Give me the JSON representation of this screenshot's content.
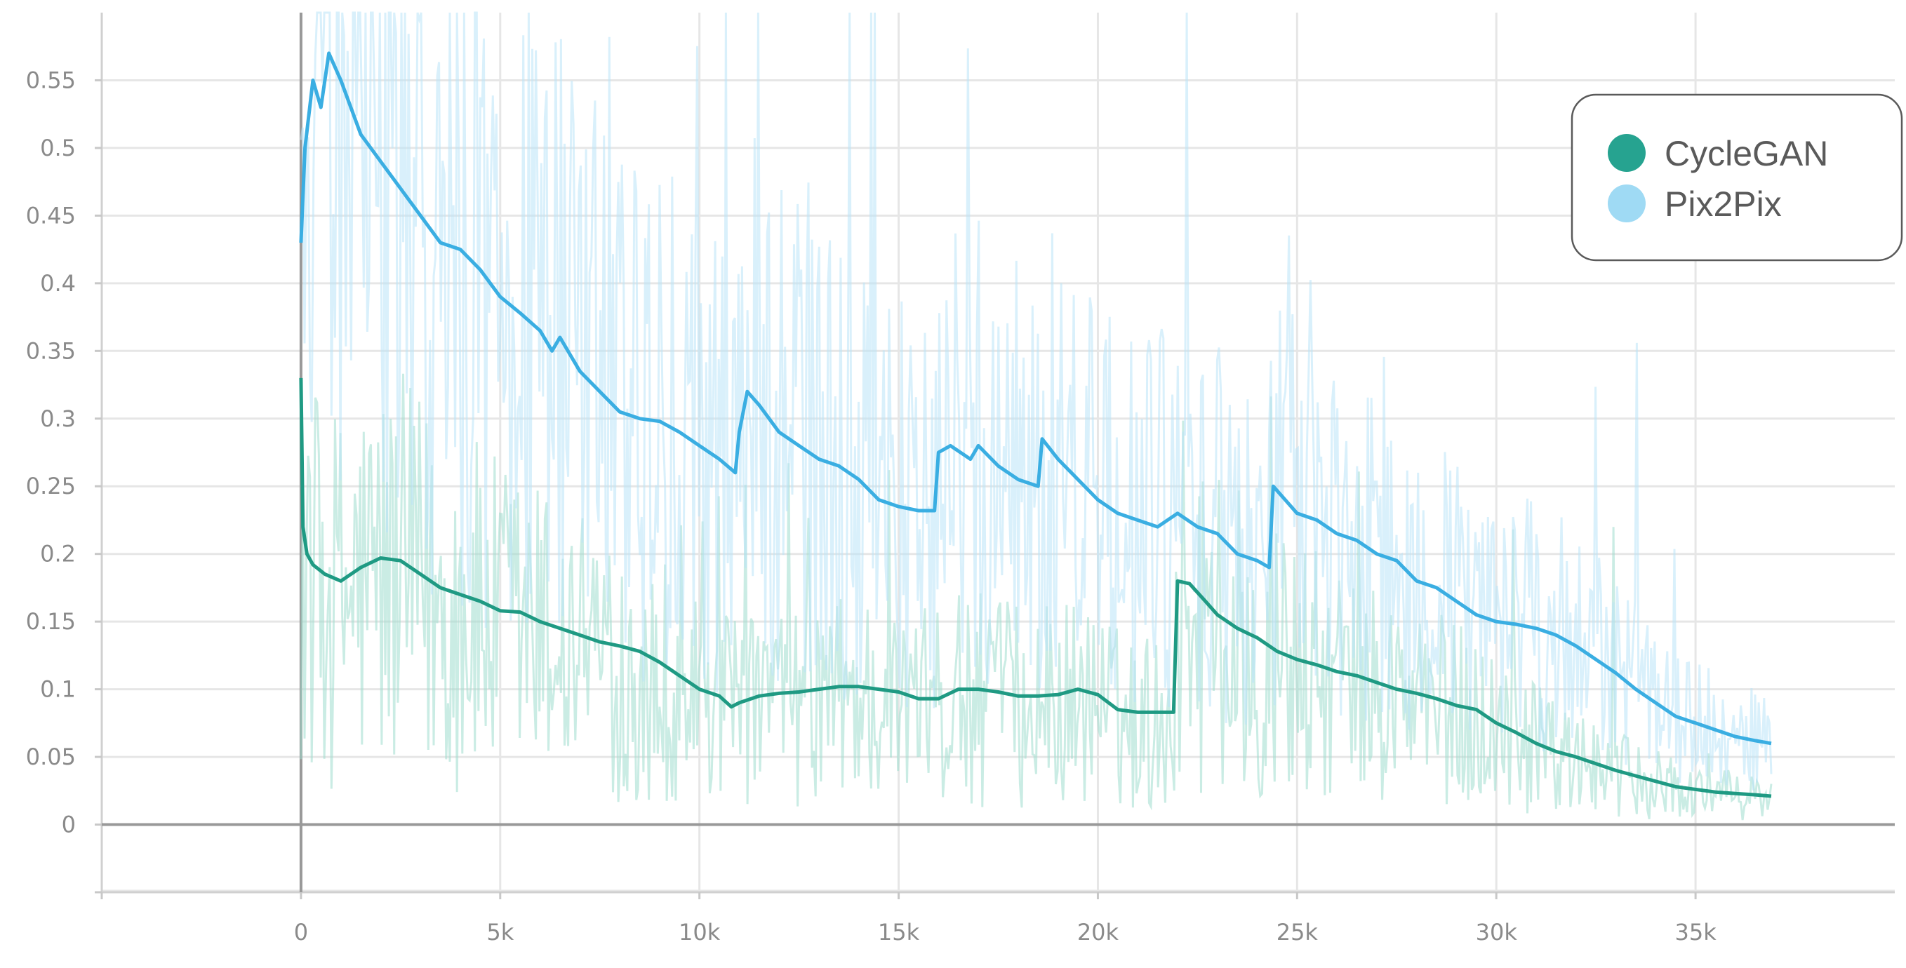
{
  "chart_data": {
    "type": "line",
    "title": "",
    "xlabel": "",
    "ylabel": "",
    "xlim": [
      -5000,
      40000
    ],
    "ylim": [
      -0.05,
      0.6
    ],
    "x_ticks": [
      0,
      5000,
      10000,
      15000,
      20000,
      25000,
      30000,
      35000
    ],
    "x_tick_labels": [
      "0",
      "5k",
      "10k",
      "15k",
      "20k",
      "25k",
      "30k",
      "35k"
    ],
    "y_ticks": [
      0,
      0.05,
      0.1,
      0.15,
      0.2,
      0.25,
      0.3,
      0.35,
      0.4,
      0.45,
      0.5,
      0.55
    ],
    "y_tick_labels": [
      "0",
      "0.05",
      "0.1",
      "0.15",
      "0.2",
      "0.25",
      "0.3",
      "0.35",
      "0.4",
      "0.45",
      "0.5",
      "0.55"
    ],
    "grid": true,
    "legend_position": "top-right",
    "series": [
      {
        "name": "CycleGAN",
        "color": "#1f9a83",
        "raw_color": "#9fdccd",
        "x": [
          0,
          50,
          150,
          300,
          600,
          1000,
          1500,
          2000,
          2500,
          3000,
          3500,
          4000,
          4500,
          5000,
          5500,
          6000,
          6500,
          7000,
          7500,
          8000,
          8500,
          9000,
          9500,
          10000,
          10500,
          10800,
          11000,
          11500,
          12000,
          12500,
          13000,
          13500,
          14000,
          14500,
          15000,
          15500,
          16000,
          16500,
          17000,
          17500,
          18000,
          18500,
          19000,
          19500,
          20000,
          20500,
          21000,
          21500,
          21900,
          22000,
          22300,
          22700,
          23000,
          23500,
          24000,
          24500,
          25000,
          25500,
          26000,
          26500,
          27000,
          27500,
          28000,
          28500,
          29000,
          29500,
          30000,
          30500,
          31000,
          31500,
          32000,
          32500,
          33000,
          33500,
          34000,
          34500,
          35000,
          35500,
          36000,
          36500,
          36900
        ],
        "y": [
          0.33,
          0.22,
          0.2,
          0.192,
          0.185,
          0.18,
          0.19,
          0.197,
          0.195,
          0.185,
          0.175,
          0.17,
          0.165,
          0.158,
          0.157,
          0.15,
          0.145,
          0.14,
          0.135,
          0.132,
          0.128,
          0.12,
          0.11,
          0.1,
          0.095,
          0.087,
          0.09,
          0.095,
          0.097,
          0.098,
          0.1,
          0.102,
          0.102,
          0.1,
          0.098,
          0.093,
          0.093,
          0.1,
          0.1,
          0.098,
          0.095,
          0.095,
          0.096,
          0.1,
          0.096,
          0.085,
          0.083,
          0.083,
          0.083,
          0.18,
          0.178,
          0.165,
          0.155,
          0.145,
          0.138,
          0.128,
          0.122,
          0.118,
          0.113,
          0.11,
          0.105,
          0.1,
          0.097,
          0.093,
          0.088,
          0.085,
          0.075,
          0.068,
          0.06,
          0.054,
          0.05,
          0.045,
          0.04,
          0.036,
          0.032,
          0.028,
          0.026,
          0.024,
          0.023,
          0.022,
          0.021
        ]
      },
      {
        "name": "Pix2Pix",
        "color": "#3aaee2",
        "raw_color": "#b9e3f8",
        "x": [
          0,
          100,
          300,
          500,
          700,
          1000,
          1500,
          2000,
          2500,
          3000,
          3500,
          4000,
          4500,
          5000,
          5500,
          6000,
          6300,
          6500,
          7000,
          7500,
          8000,
          8500,
          9000,
          9500,
          10000,
          10500,
          10900,
          11000,
          11200,
          11500,
          12000,
          12500,
          13000,
          13500,
          14000,
          14500,
          15000,
          15500,
          15900,
          16000,
          16300,
          16800,
          17000,
          17500,
          18000,
          18500,
          18600,
          19000,
          19500,
          20000,
          20500,
          21000,
          21500,
          22000,
          22500,
          23000,
          23500,
          24000,
          24300,
          24400,
          24700,
          25000,
          25500,
          26000,
          26500,
          27000,
          27500,
          28000,
          28500,
          29000,
          29500,
          30000,
          30500,
          31000,
          31500,
          32000,
          32500,
          33000,
          33500,
          34000,
          34500,
          35000,
          35500,
          36000,
          36500,
          36900
        ],
        "y": [
          0.43,
          0.5,
          0.55,
          0.53,
          0.57,
          0.55,
          0.51,
          0.49,
          0.47,
          0.45,
          0.43,
          0.425,
          0.41,
          0.39,
          0.378,
          0.365,
          0.35,
          0.36,
          0.335,
          0.32,
          0.305,
          0.3,
          0.298,
          0.29,
          0.28,
          0.27,
          0.26,
          0.29,
          0.32,
          0.31,
          0.29,
          0.28,
          0.27,
          0.265,
          0.255,
          0.24,
          0.235,
          0.232,
          0.232,
          0.275,
          0.28,
          0.27,
          0.28,
          0.265,
          0.255,
          0.25,
          0.285,
          0.27,
          0.255,
          0.24,
          0.23,
          0.225,
          0.22,
          0.23,
          0.22,
          0.215,
          0.2,
          0.195,
          0.19,
          0.25,
          0.24,
          0.23,
          0.225,
          0.215,
          0.21,
          0.2,
          0.195,
          0.18,
          0.175,
          0.165,
          0.155,
          0.15,
          0.148,
          0.145,
          0.14,
          0.132,
          0.122,
          0.112,
          0.1,
          0.09,
          0.08,
          0.075,
          0.07,
          0.065,
          0.062,
          0.06
        ]
      }
    ]
  }
}
